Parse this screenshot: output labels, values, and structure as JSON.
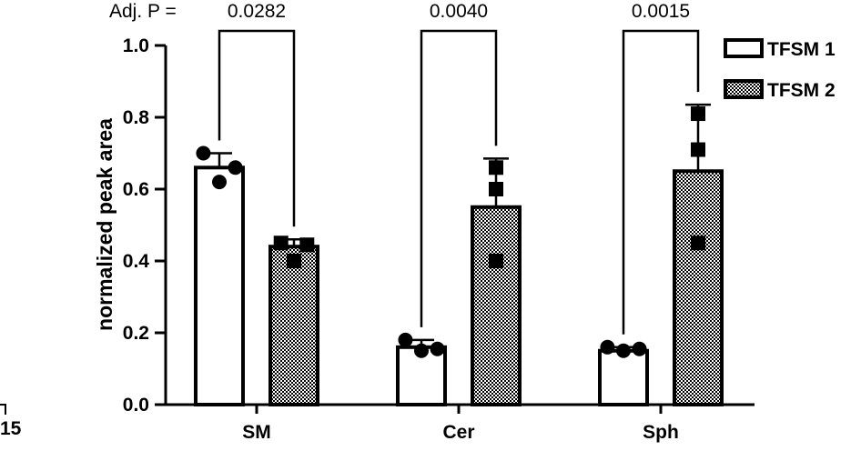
{
  "chart_data": {
    "type": "bar",
    "ylabel": "normalized peak area",
    "ylim": [
      0,
      1.0
    ],
    "yticks": [
      0.0,
      0.2,
      0.4,
      0.6,
      0.8,
      1.0
    ],
    "ytick_labels": [
      "0.0",
      "0.2",
      "0.4",
      "0.6",
      "0.8",
      "1.0"
    ],
    "categories": [
      "SM",
      "Cer",
      "Sph"
    ],
    "series": [
      {
        "name": "TFSM 1",
        "values": [
          0.66,
          0.16,
          0.15
        ],
        "errors": [
          0.04,
          0.02,
          0.01
        ],
        "points": [
          [
            0.7,
            0.62,
            0.66
          ],
          [
            0.18,
            0.15,
            0.155
          ],
          [
            0.16,
            0.15,
            0.155
          ]
        ],
        "pattern": "open",
        "marker": "circle"
      },
      {
        "name": "TFSM 2",
        "values": [
          0.44,
          0.55,
          0.65
        ],
        "errors": [
          0.02,
          0.135,
          0.185
        ],
        "points": [
          [
            0.45,
            0.4,
            0.445
          ],
          [
            0.66,
            0.6,
            0.4
          ],
          [
            0.81,
            0.71,
            0.45
          ]
        ],
        "pattern": "checker",
        "marker": "square"
      }
    ],
    "significance": {
      "prefix": "Adj. P =",
      "values": [
        "0.0282",
        "0.0040",
        "0.0015"
      ]
    },
    "legend_position": "top-right",
    "grid": false,
    "stray_label": "15",
    "colors": {
      "bar_edge": "#000000",
      "open_fill": "#ffffff"
    }
  }
}
